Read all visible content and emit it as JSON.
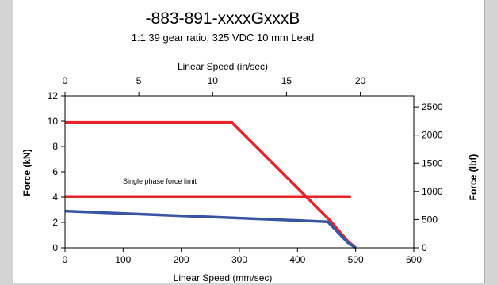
{
  "chart_data": {
    "type": "line",
    "title": "-883-891-xxxxGxxxB",
    "subtitle": "1:1.39 gear ratio, 325 VDC 10 mm Lead",
    "xlabel": "Linear Speed (mm/sec)",
    "x2label": "Linear Speed (in/sec)",
    "ylabel": "Force (kN)",
    "y2label": "Force (lbf)",
    "xlim": [
      0,
      600
    ],
    "ylim": [
      0,
      12
    ],
    "x2lim": [
      0,
      23.62
    ],
    "y2lim": [
      0,
      2698
    ],
    "xticks": [
      0,
      100,
      200,
      300,
      400,
      500,
      600
    ],
    "yticks": [
      0,
      2,
      4,
      6,
      8,
      10,
      12
    ],
    "x2ticks": [
      0,
      5,
      10,
      15,
      20
    ],
    "y2ticks": [
      0,
      500,
      1000,
      1500,
      2000,
      2500
    ],
    "grid": false,
    "annotation": {
      "text": "Single phase force limit"
    },
    "series": [
      {
        "color": "#e8242b",
        "x": [
          0,
          287,
          455,
          470,
          487,
          500
        ],
        "y": [
          9.9,
          9.9,
          2.2,
          1.4,
          0.5,
          0
        ]
      },
      {
        "color": "#e8242b",
        "x": [
          0,
          492
        ],
        "y": [
          4.05,
          4.05
        ]
      },
      {
        "color": "#3a54a4",
        "x": [
          0,
          452,
          470,
          487,
          500
        ],
        "y": [
          2.9,
          2.05,
          1.2,
          0.4,
          0
        ]
      }
    ]
  }
}
